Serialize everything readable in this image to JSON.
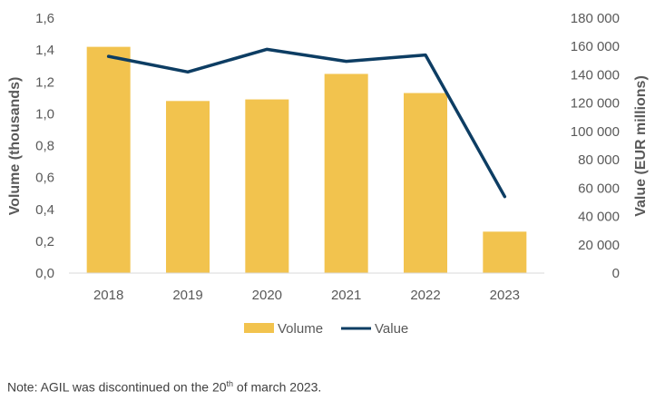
{
  "chart_data": {
    "type": "bar+line",
    "categories": [
      "2018",
      "2019",
      "2020",
      "2021",
      "2022",
      "2023"
    ],
    "series": [
      {
        "name": "Volume",
        "type": "bar",
        "axis": "left",
        "color": "#F2C34E",
        "values": [
          1.42,
          1.08,
          1.09,
          1.25,
          1.13,
          0.26
        ]
      },
      {
        "name": "Value",
        "type": "line",
        "axis": "right",
        "color": "#0D3D63",
        "values": [
          153000,
          142000,
          158000,
          149500,
          154000,
          54000
        ]
      }
    ],
    "left_axis": {
      "label": "Volume (thousands)",
      "ylim": [
        0,
        1.6
      ],
      "ticks": [
        0,
        0.2,
        0.4,
        0.6,
        0.8,
        1.0,
        1.2,
        1.4,
        1.6
      ],
      "tick_labels": [
        "0,0",
        "0,2",
        "0,4",
        "0,6",
        "0,8",
        "1,0",
        "1,2",
        "1,4",
        "1,6"
      ]
    },
    "right_axis": {
      "label": "Value (EUR millions)",
      "ylim": [
        0,
        180000
      ],
      "ticks": [
        0,
        20000,
        40000,
        60000,
        80000,
        100000,
        120000,
        140000,
        160000,
        180000
      ],
      "tick_labels": [
        "0",
        "20 000",
        "40 000",
        "60 000",
        "80 000",
        "100 000",
        "120 000",
        "140 000",
        "160 000",
        "180 000"
      ]
    },
    "gridlines": false,
    "legend": {
      "placement": "bottom",
      "entries": [
        "Volume",
        "Value"
      ]
    }
  },
  "note": {
    "prefix": "Note: AGIL was discontinued on the 20",
    "superscript": "th",
    "suffix": " of march 2023."
  }
}
